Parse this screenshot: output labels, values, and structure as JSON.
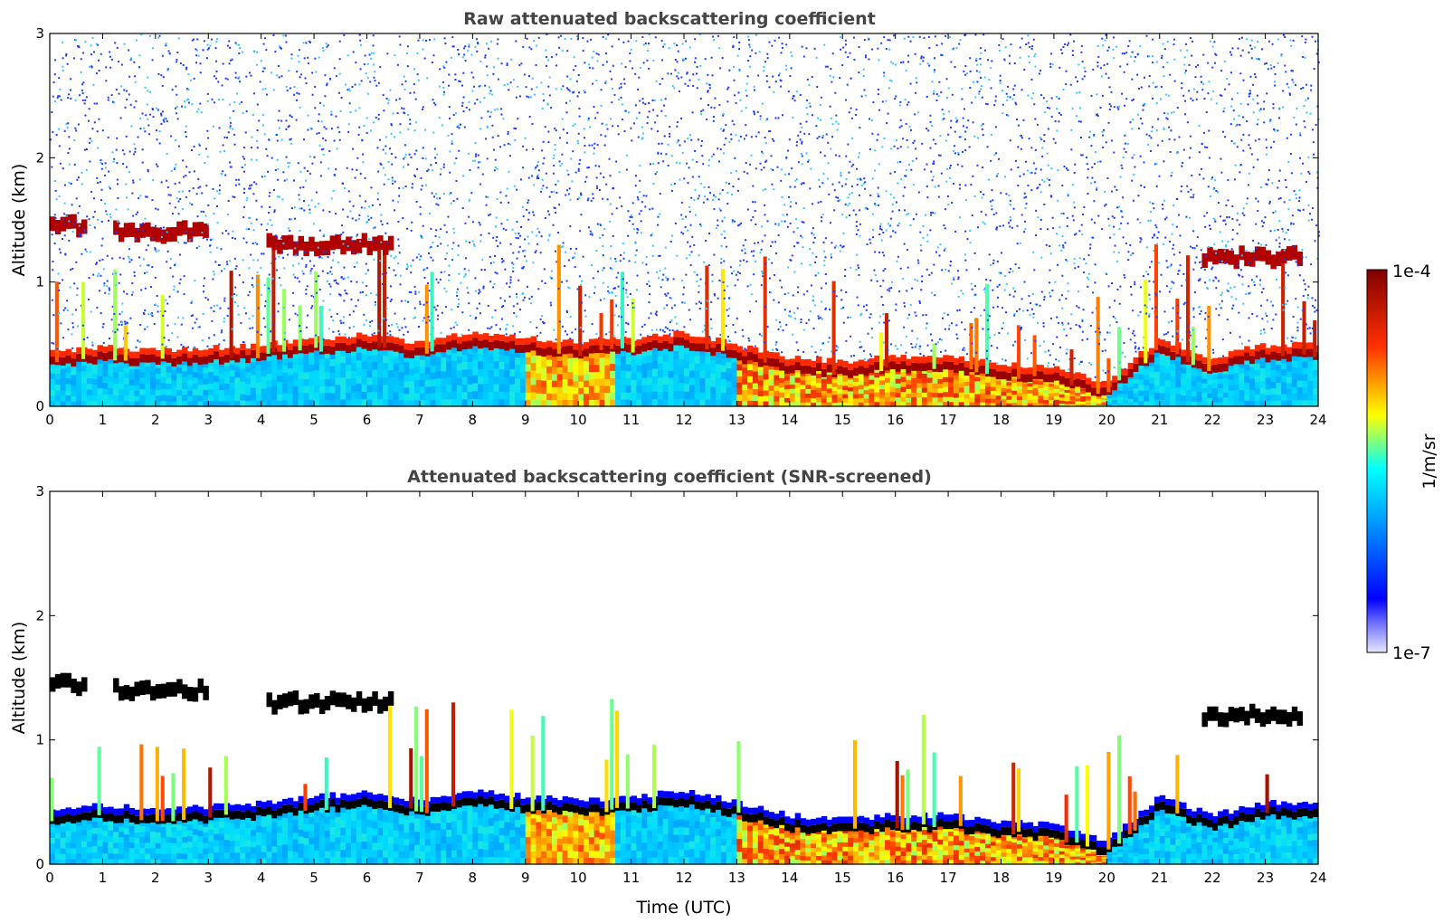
{
  "chart_data": [
    {
      "type": "heatmap",
      "title": "Raw attenuated backscattering coefficient",
      "xlabel": "",
      "ylabel": "Altitude (km)",
      "xlim": [
        0,
        24
      ],
      "ylim": [
        0,
        3
      ],
      "x_ticks": [
        "0",
        "1",
        "2",
        "3",
        "4",
        "5",
        "6",
        "7",
        "8",
        "9",
        "10",
        "11",
        "12",
        "13",
        "14",
        "15",
        "16",
        "17",
        "18",
        "19",
        "20",
        "21",
        "22",
        "23",
        "24"
      ],
      "y_ticks": [
        "0",
        "1",
        "2",
        "3"
      ],
      "noisy": true,
      "layer_height_km": [
        [
          0,
          0.35
        ],
        [
          1,
          0.38
        ],
        [
          2,
          0.36
        ],
        [
          3,
          0.37
        ],
        [
          4,
          0.4
        ],
        [
          5,
          0.45
        ],
        [
          6,
          0.48
        ],
        [
          7,
          0.42
        ],
        [
          8,
          0.5
        ],
        [
          9,
          0.45
        ],
        [
          10,
          0.42
        ],
        [
          11,
          0.45
        ],
        [
          12,
          0.5
        ],
        [
          13,
          0.4
        ],
        [
          14,
          0.3
        ],
        [
          15,
          0.27
        ],
        [
          16,
          0.3
        ],
        [
          17,
          0.3
        ],
        [
          18,
          0.25
        ],
        [
          19,
          0.22
        ],
        [
          20,
          0.1
        ],
        [
          21,
          0.45
        ],
        [
          22,
          0.3
        ],
        [
          23,
          0.4
        ],
        [
          24,
          0.4
        ]
      ],
      "elevated_layers": [
        {
          "start": 0,
          "end": 0.7,
          "height_km": 1.45
        },
        {
          "start": 1.2,
          "end": 3.0,
          "height_km": 1.4
        },
        {
          "start": 4.1,
          "end": 6.5,
          "height_km": 1.3
        },
        {
          "start": 21.8,
          "end": 23.7,
          "height_km": 1.2
        }
      ]
    },
    {
      "type": "heatmap",
      "title": "Attenuated backscattering coefficient (SNR-screened)",
      "xlabel": "Time (UTC)",
      "ylabel": "Altitude (km)",
      "xlim": [
        0,
        24
      ],
      "ylim": [
        0,
        3
      ],
      "x_ticks": [
        "0",
        "1",
        "2",
        "3",
        "4",
        "5",
        "6",
        "7",
        "8",
        "9",
        "10",
        "11",
        "12",
        "13",
        "14",
        "15",
        "16",
        "17",
        "18",
        "19",
        "20",
        "21",
        "22",
        "23",
        "24"
      ],
      "y_ticks": [
        "0",
        "1",
        "2",
        "3"
      ],
      "noisy": false,
      "layer_height_km": [
        [
          0,
          0.35
        ],
        [
          1,
          0.38
        ],
        [
          2,
          0.36
        ],
        [
          3,
          0.37
        ],
        [
          4,
          0.4
        ],
        [
          5,
          0.45
        ],
        [
          6,
          0.48
        ],
        [
          7,
          0.42
        ],
        [
          8,
          0.5
        ],
        [
          9,
          0.45
        ],
        [
          10,
          0.42
        ],
        [
          11,
          0.45
        ],
        [
          12,
          0.5
        ],
        [
          13,
          0.4
        ],
        [
          14,
          0.3
        ],
        [
          15,
          0.27
        ],
        [
          16,
          0.3
        ],
        [
          17,
          0.3
        ],
        [
          18,
          0.25
        ],
        [
          19,
          0.22
        ],
        [
          20,
          0.1
        ],
        [
          21,
          0.45
        ],
        [
          22,
          0.3
        ],
        [
          23,
          0.4
        ],
        [
          24,
          0.4
        ]
      ],
      "elevated_layers": [
        {
          "start": 0,
          "end": 0.7,
          "height_km": 1.45
        },
        {
          "start": 1.2,
          "end": 3.0,
          "height_km": 1.4
        },
        {
          "start": 4.1,
          "end": 6.5,
          "height_km": 1.3
        },
        {
          "start": 21.8,
          "end": 23.7,
          "height_km": 1.2
        }
      ]
    }
  ],
  "colorbar": {
    "max_label": "1e-4",
    "min_label": "1e-7",
    "unit_label": "1/m/sr",
    "colormap": "jet",
    "colors": [
      "#e6e6fa",
      "#0000ff",
      "#00ffff",
      "#ffff00",
      "#ff0000",
      "#800000"
    ]
  }
}
